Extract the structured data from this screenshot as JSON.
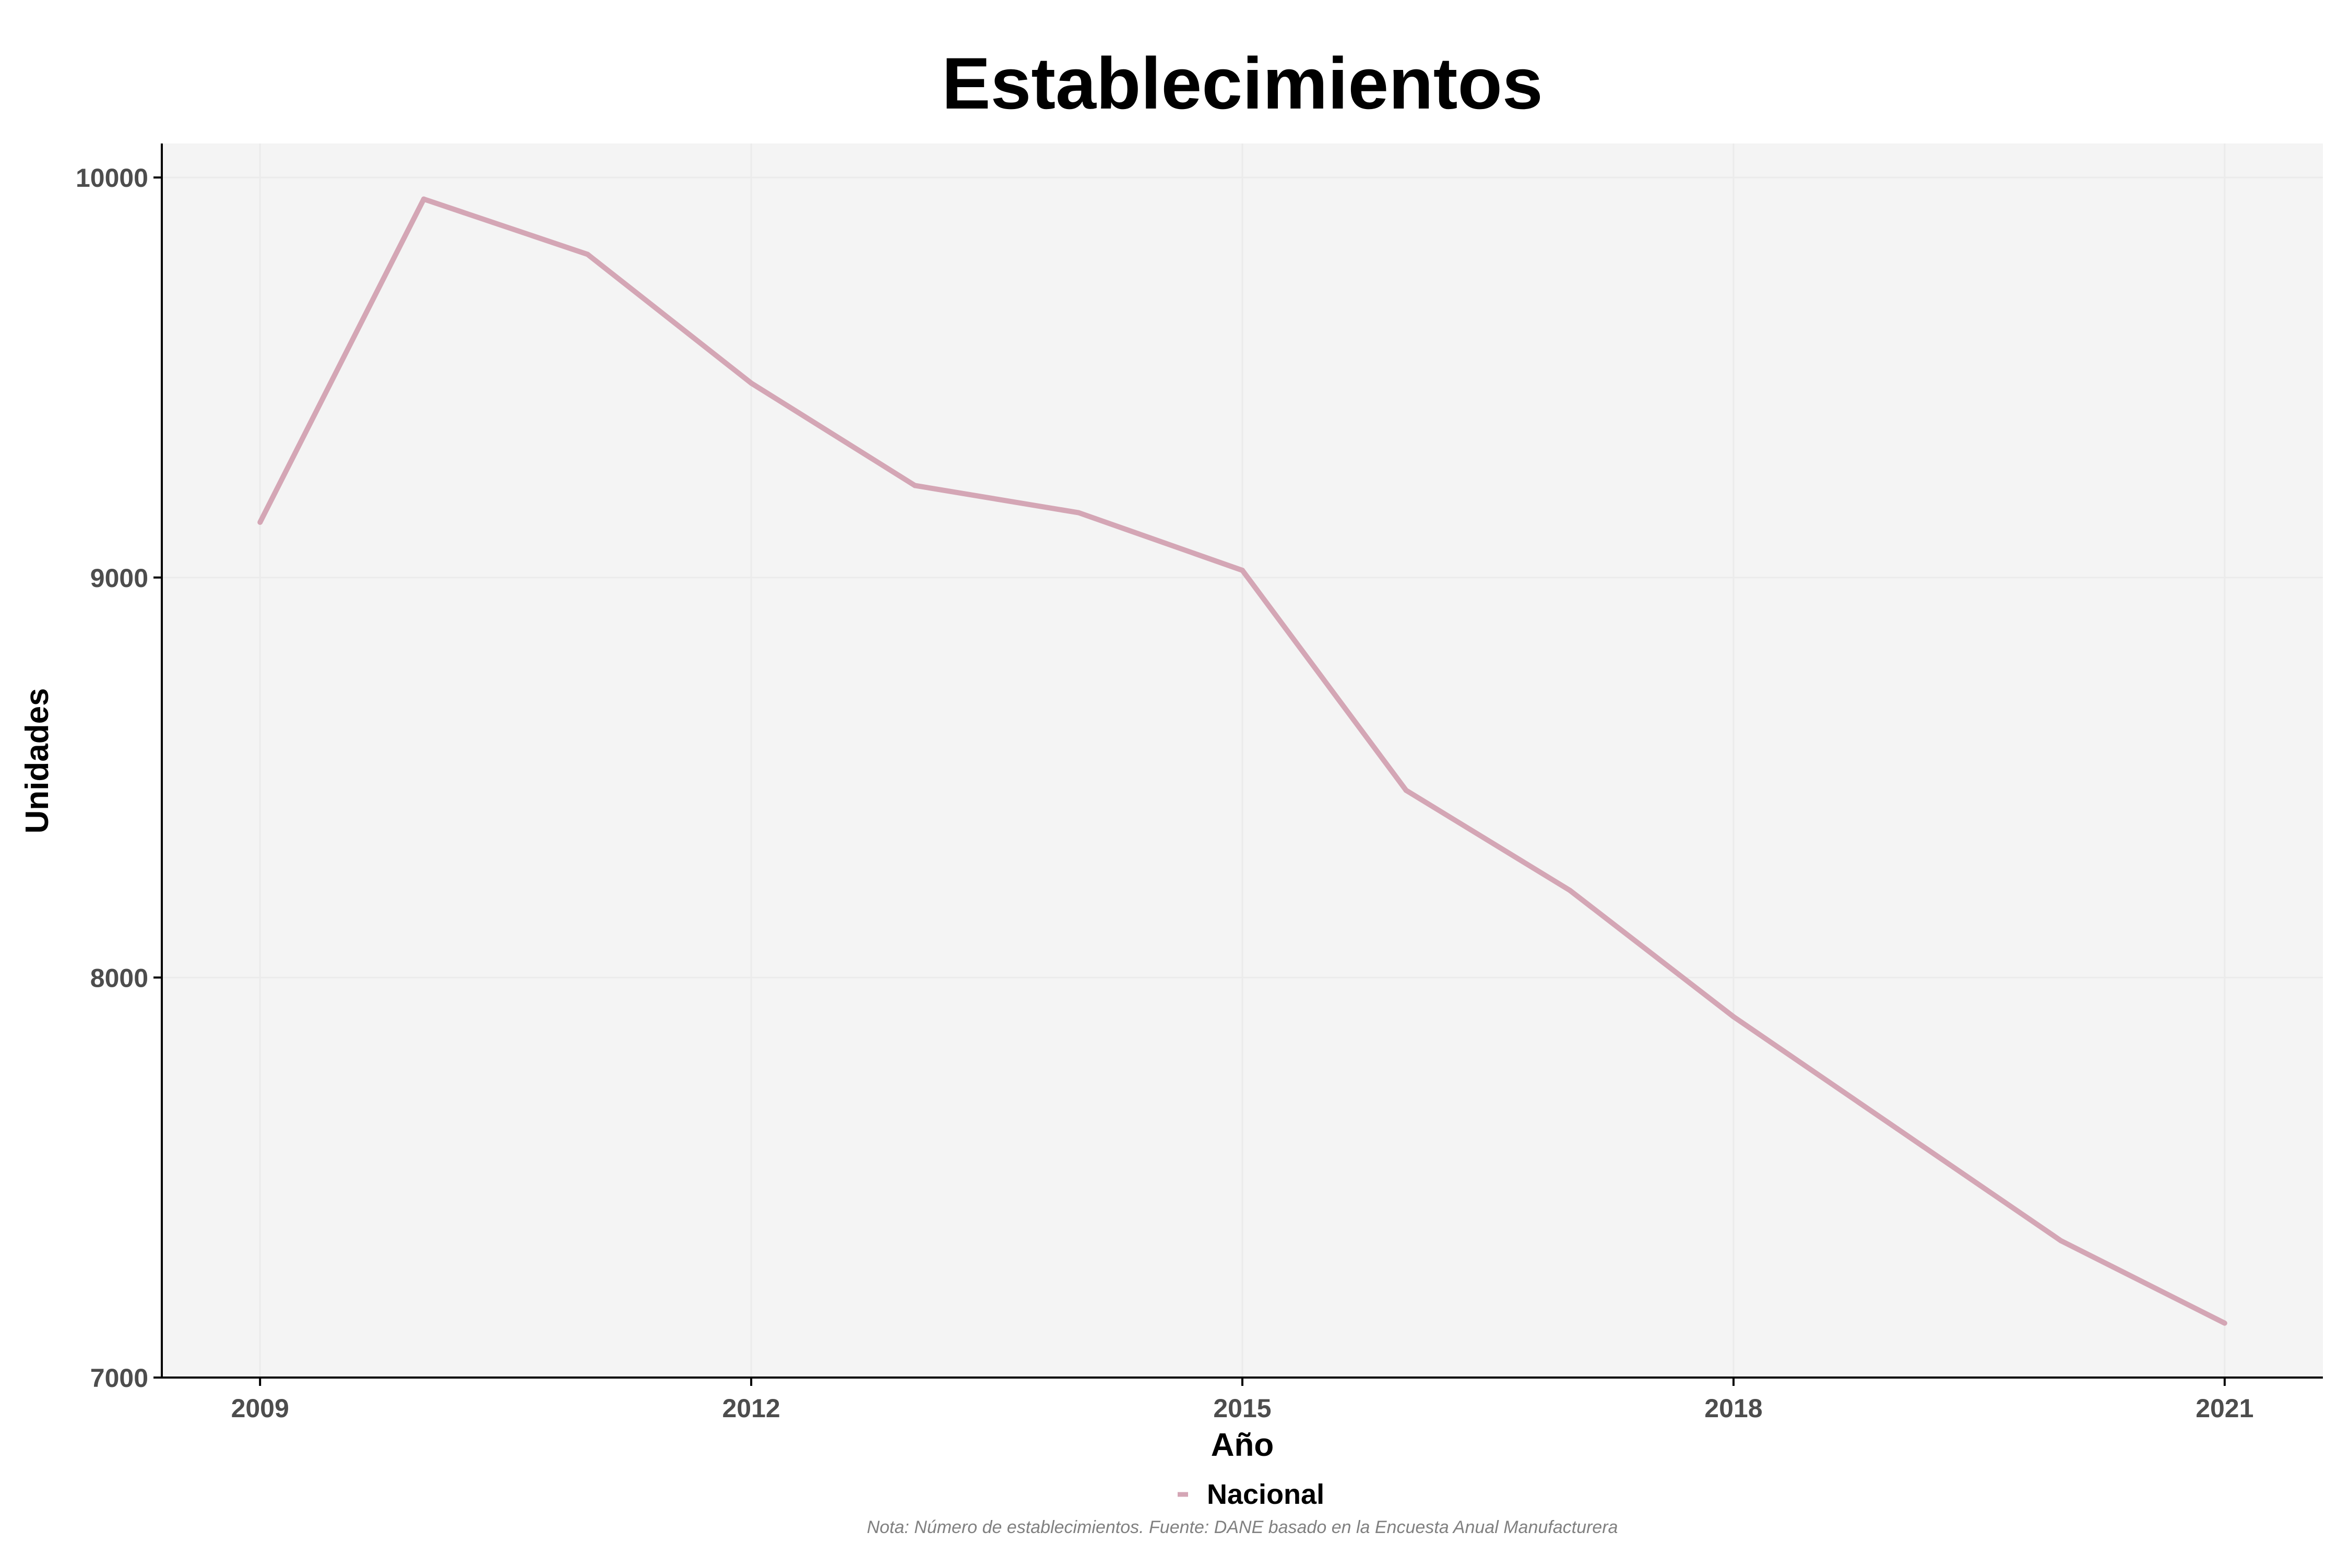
{
  "chart_data": {
    "type": "line",
    "title": "Establecimientos",
    "xlabel": "Año",
    "ylabel": "Unidades",
    "x": [
      2009,
      2010,
      2011,
      2012,
      2013,
      2014,
      2015,
      2016,
      2017,
      2018,
      2019,
      2020,
      2021
    ],
    "x_ticks": [
      "2009",
      "2012",
      "2015",
      "2018",
      "2021"
    ],
    "y_ticks": [
      "7000",
      "8000",
      "9000",
      "10000"
    ],
    "xlim": [
      2008.4,
      2021.6
    ],
    "ylim": [
      7000,
      10085
    ],
    "series": [
      {
        "name": "Nacional",
        "color": "#d4a6b5",
        "values": [
          9138,
          9946,
          9808,
          9486,
          9230,
          9162,
          9018,
          8468,
          8218,
          7902,
          7622,
          7342,
          7136
        ]
      }
    ],
    "grid": true,
    "legend_position": "bottom",
    "note": "Nota: Número de establecimientos. Fuente: DANE basado en la Encuesta Anual Manufacturera",
    "colors": {
      "panel_background": "#f4f4f4",
      "grid": "#ebebeb",
      "axis_line": "#000000",
      "tick_label": "#4d4d4d",
      "note": "#808080"
    }
  }
}
